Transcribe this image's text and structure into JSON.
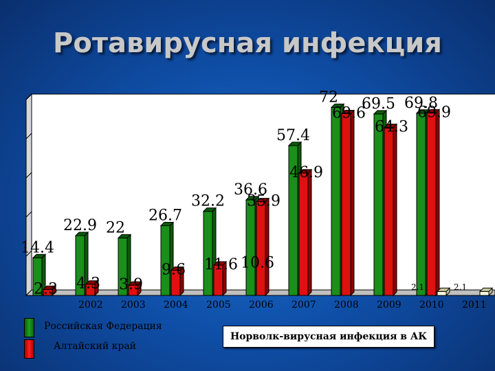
{
  "title": "Ротавирусная инфекция",
  "legend": {
    "series1": "Российская Федерация",
    "series2": "Алтайский край"
  },
  "norovirus_label": "Норволк-вирусная инфекция в АК",
  "colors": {
    "rf": "#1a8f1a",
    "ak": "#e01010",
    "ak_2011": "#ffffe0",
    "background": "#1a62c0",
    "plot_area": "#ffffff"
  },
  "chart_data": {
    "type": "bar",
    "categories": [
      "",
      "2002",
      "2003",
      "2004",
      "2005",
      "2006",
      "2007",
      "2008",
      "2009",
      "2010",
      "2011"
    ],
    "series": [
      {
        "name": "Российская Федерация",
        "values": [
          14.4,
          22.9,
          22,
          26.7,
          32.2,
          36.6,
          57.4,
          72,
          69.5,
          69.8,
          null
        ]
      },
      {
        "name": "Алтайский край",
        "values": [
          2.3,
          4.3,
          3.9,
          9.6,
          11.6,
          35.9,
          46.9,
          69.6,
          64.3,
          69.9,
          null
        ]
      },
      {
        "name": "Норволк-вирусная инфекция в АК",
        "values": [
          null,
          null,
          null,
          null,
          null,
          10.6,
          null,
          null,
          null,
          2.1,
          2.1
        ]
      }
    ],
    "data_labels": {
      "rf": [
        "14.4",
        "22.9",
        "22",
        "26.7",
        "32.2",
        "36.6",
        "57.4",
        "72",
        "69.5",
        "69.8",
        ""
      ],
      "ak": [
        "2.3",
        "4.3",
        "3.9",
        "9.6",
        "11.6",
        "35.9",
        "46.9",
        "69.6",
        "64.3",
        "69.9",
        ""
      ],
      "norovirus": [
        "",
        "",
        "",
        "",
        "",
        "10.6",
        "",
        "",
        "",
        "2.1",
        "2.1"
      ]
    },
    "ylim": [
      0,
      75
    ],
    "grid": true,
    "legend_position": "bottom-left"
  }
}
